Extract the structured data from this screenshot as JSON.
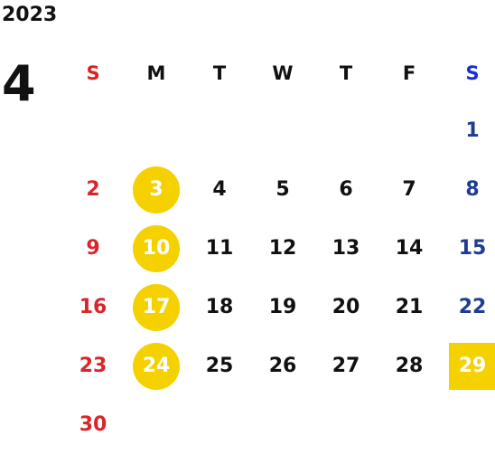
{
  "calendar": {
    "year": "2023",
    "month": "4",
    "weekdays": [
      "S",
      "M",
      "T",
      "W",
      "T",
      "F",
      "S"
    ],
    "weeks": [
      [
        "",
        "",
        "",
        "",
        "",
        "",
        "1"
      ],
      [
        "2",
        "3",
        "4",
        "5",
        "6",
        "7",
        "8"
      ],
      [
        "9",
        "10",
        "11",
        "12",
        "13",
        "14",
        "15"
      ],
      [
        "16",
        "17",
        "18",
        "19",
        "20",
        "21",
        "22"
      ],
      [
        "23",
        "24",
        "25",
        "26",
        "27",
        "28",
        "29"
      ],
      [
        "30",
        "",
        "",
        "",
        "",
        "",
        ""
      ]
    ],
    "holidays": [
      "3",
      "10",
      "17",
      "24",
      "29"
    ],
    "colors": {
      "sunday": "#d9262a",
      "saturday": "#1f3d8f",
      "weekday": "#111111",
      "holiday_fill": "#f5d100",
      "holiday_text": "#ffffff"
    }
  }
}
